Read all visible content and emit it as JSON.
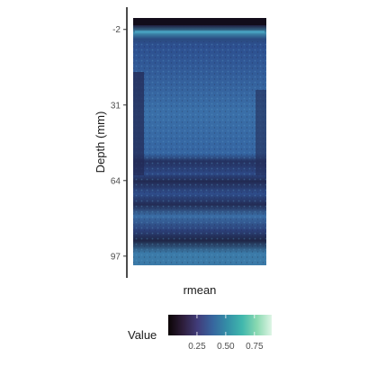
{
  "chart_data": {
    "type": "heatmap",
    "ylabel": "Depth (mm)",
    "xlabel": "rmean",
    "y_ticks": [
      -2,
      31,
      64,
      97
    ],
    "ylim": [
      -7,
      101
    ],
    "y_reversed": true,
    "legend": {
      "title": "Value",
      "position": "bottom",
      "colormap": "mako",
      "ticks": [
        "0.25",
        "0.50",
        "0.75"
      ],
      "tick_values": [
        0.25,
        0.5,
        0.75
      ],
      "range": [
        0,
        0.9
      ]
    },
    "colors": {
      "mako_stops": [
        "#0b0405",
        "#2e1e3c",
        "#413d7b",
        "#37659e",
        "#348fa7",
        "#40b7ad",
        "#8ad9b1",
        "#def5e5"
      ]
    }
  }
}
